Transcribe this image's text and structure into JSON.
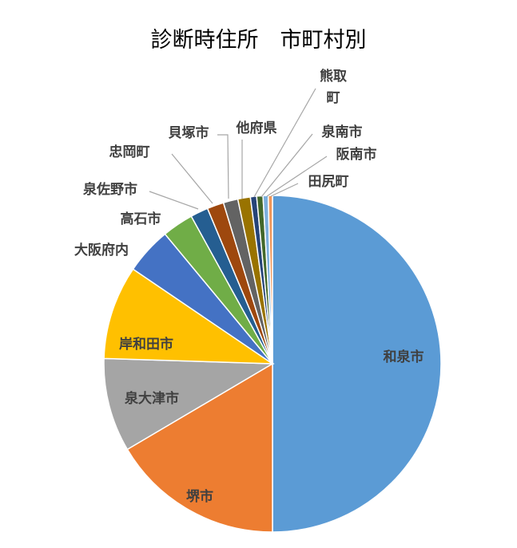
{
  "chart_data": {
    "type": "pie",
    "title": "診断時住所　市町村別",
    "slices": [
      {
        "label": "和泉市",
        "value": 50.0,
        "color": "#5B9BD5",
        "label_lines": [
          "和泉市"
        ]
      },
      {
        "label": "堺市",
        "value": 16.5,
        "color": "#ED7D31",
        "label_lines": [
          "堺市"
        ]
      },
      {
        "label": "泉大津市",
        "value": 9.0,
        "color": "#A5A5A5",
        "label_lines": [
          "泉大津市"
        ]
      },
      {
        "label": "岸和田市",
        "value": 9.0,
        "color": "#FFC000",
        "label_lines": [
          "岸和田市"
        ]
      },
      {
        "label": "大阪府内",
        "value": 4.5,
        "color": "#4472C4",
        "label_lines": [
          "大阪府内"
        ]
      },
      {
        "label": "高石市",
        "value": 3.0,
        "color": "#70AD47",
        "label_lines": [
          "高石市"
        ]
      },
      {
        "label": "泉佐野市",
        "value": 1.7,
        "color": "#255E91",
        "label_lines": [
          "泉佐野市"
        ]
      },
      {
        "label": "忠岡町",
        "value": 1.6,
        "color": "#9E480E",
        "label_lines": [
          "忠岡町"
        ]
      },
      {
        "label": "貝塚市",
        "value": 1.4,
        "color": "#636363",
        "label_lines": [
          "貝塚市"
        ]
      },
      {
        "label": "他府県",
        "value": 1.2,
        "color": "#997300",
        "label_lines": [
          "他府県"
        ]
      },
      {
        "label": "熊取町",
        "value": 0.6,
        "color": "#264478",
        "label_lines": [
          "熊取",
          "町"
        ]
      },
      {
        "label": "泉南市",
        "value": 0.6,
        "color": "#43682B",
        "label_lines": [
          "泉南市"
        ]
      },
      {
        "label": "阪南市",
        "value": 0.5,
        "color": "#7CAFDD",
        "label_lines": [
          "阪南市"
        ]
      },
      {
        "label": "田尻町",
        "value": 0.4,
        "color": "#F1975A",
        "label_lines": [
          "田尻町"
        ]
      }
    ]
  }
}
